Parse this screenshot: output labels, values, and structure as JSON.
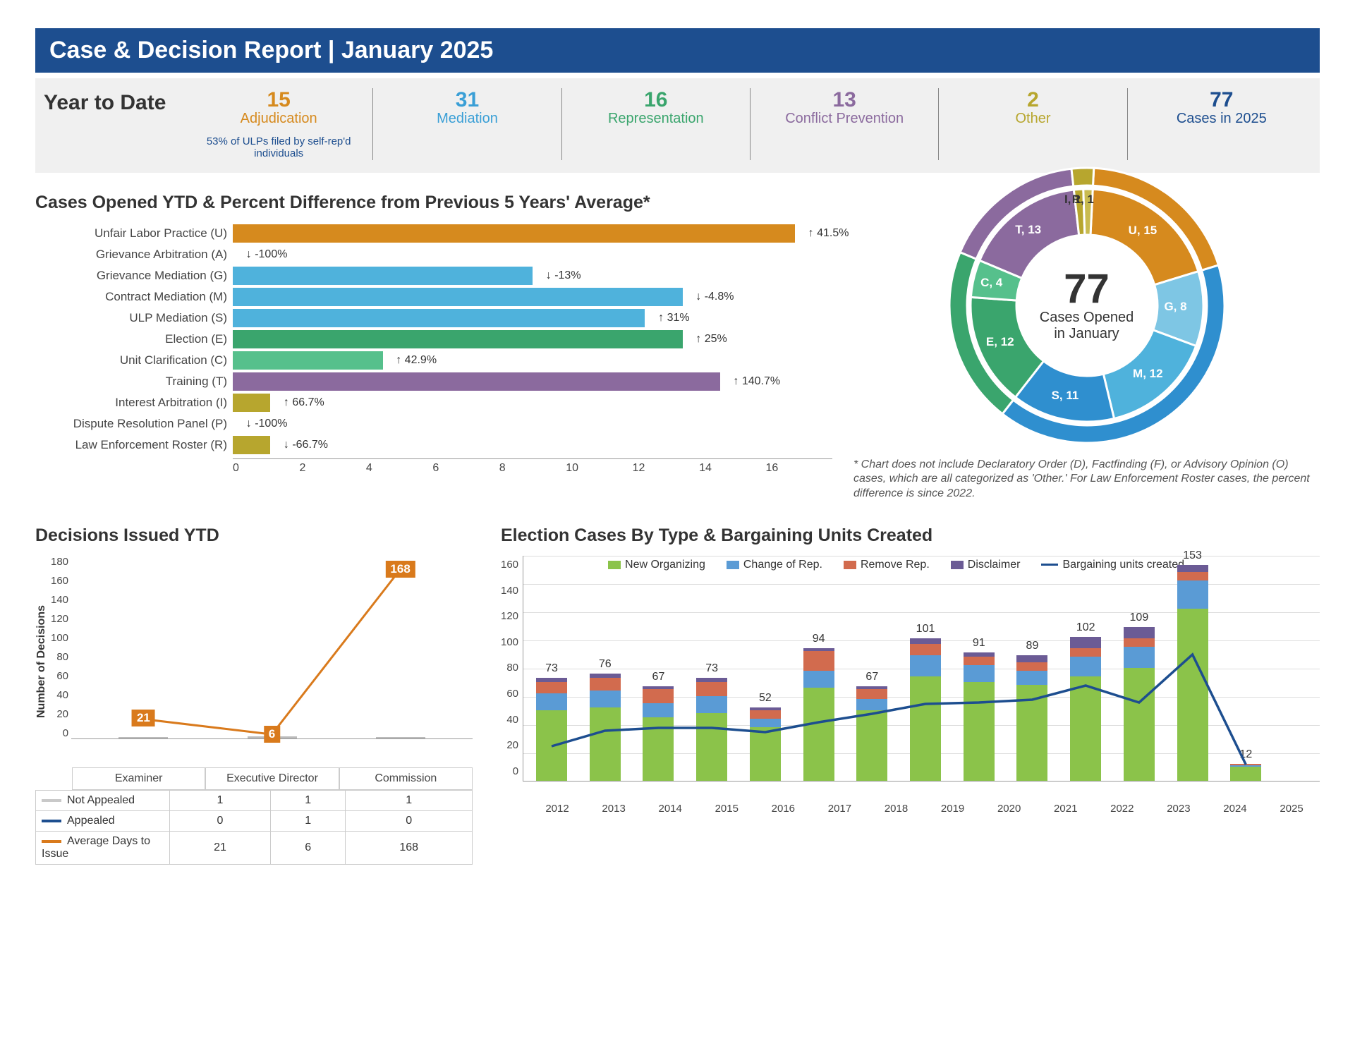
{
  "header": {
    "title": "Case & Decision Report | January 2025"
  },
  "ytd": {
    "label": "Year to Date",
    "items": [
      {
        "value": "15",
        "name": "Adjudication",
        "color": "#d68a1e",
        "sub": "53% of ULPs filed by self-rep'd individuals"
      },
      {
        "value": "31",
        "name": "Mediation",
        "color": "#3a9fd6",
        "sub": ""
      },
      {
        "value": "16",
        "name": "Representation",
        "color": "#3aa56d",
        "sub": ""
      },
      {
        "value": "13",
        "name": "Conflict Prevention",
        "color": "#8b6a9e",
        "sub": ""
      },
      {
        "value": "2",
        "name": "Other",
        "color": "#b7a62e",
        "sub": ""
      },
      {
        "value": "77",
        "name": "Cases in 2025",
        "color": "#1d4e8f",
        "sub": ""
      }
    ]
  },
  "hbar": {
    "title": "Cases Opened YTD & Percent Difference from Previous 5 Years' Average*",
    "xmax": 16,
    "xticks": [
      0,
      2,
      4,
      6,
      8,
      10,
      12,
      14,
      16
    ],
    "rows": [
      {
        "label": "Unfair Labor Practice (U)",
        "value": 15,
        "color": "#d68a1e",
        "ann": "↑ 41.5%"
      },
      {
        "label": "Grievance Arbitration (A)",
        "value": 0,
        "color": "#d68a1e",
        "ann": "↓ -100%"
      },
      {
        "label": "Grievance Mediation (G)",
        "value": 8,
        "color": "#4fb2dc",
        "ann": "↓ -13%"
      },
      {
        "label": "Contract Mediation (M)",
        "value": 12,
        "color": "#4fb2dc",
        "ann": "↓ -4.8%"
      },
      {
        "label": "ULP Mediation (S)",
        "value": 11,
        "color": "#4fb2dc",
        "ann": "↑ 31%"
      },
      {
        "label": "Election (E)",
        "value": 12,
        "color": "#3aa56d",
        "ann": "↑ 25%"
      },
      {
        "label": "Unit Clarification (C)",
        "value": 4,
        "color": "#56c08c",
        "ann": "↑ 42.9%"
      },
      {
        "label": "Training (T)",
        "value": 13,
        "color": "#8b6a9e",
        "ann": "↑ 140.7%"
      },
      {
        "label": "Interest Arbitration (I)",
        "value": 1,
        "color": "#b7a62e",
        "ann": "↑ 66.7%"
      },
      {
        "label": "Dispute Resolution Panel (P)",
        "value": 0,
        "color": "#b7a62e",
        "ann": "↓ -100%"
      },
      {
        "label": "Law Enforcement Roster (R)",
        "value": 1,
        "color": "#b7a62e",
        "ann": "↓ -66.7%"
      }
    ]
  },
  "donut": {
    "center_value": "77",
    "center_line1": "Cases Opened",
    "center_line2": "in January",
    "slices": [
      {
        "label": "U, 15",
        "value": 15,
        "color": "#d68a1e"
      },
      {
        "label": "G, 8",
        "value": 8,
        "color": "#7ec6e4"
      },
      {
        "label": "M, 12",
        "value": 12,
        "color": "#4fb2dc"
      },
      {
        "label": "S, 11",
        "value": 11,
        "color": "#2f8fcf"
      },
      {
        "label": "E, 12",
        "value": 12,
        "color": "#3aa56d"
      },
      {
        "label": "C, 4",
        "value": 4,
        "color": "#56c08c"
      },
      {
        "label": "T, 13",
        "value": 13,
        "color": "#8b6a9e"
      },
      {
        "label": "I, 1",
        "value": 1,
        "color": "#b7a62e"
      },
      {
        "label": "R, 1",
        "value": 1,
        "color": "#c9bb50"
      }
    ],
    "outer_ring": [
      {
        "value": 15,
        "color": "#d68a1e"
      },
      {
        "value": 31,
        "color": "#2f8fcf"
      },
      {
        "value": 16,
        "color": "#3aa56d"
      },
      {
        "value": 13,
        "color": "#8b6a9e"
      },
      {
        "value": 2,
        "color": "#b7a62e"
      }
    ],
    "footnote": "* Chart does not include Declaratory Order (D), Factfinding (F), or Advisory Opinion (O) cases, which are all categorized as 'Other.' For Law Enforcement Roster cases, the percent difference is since 2022."
  },
  "decisions": {
    "title": "Decisions Issued YTD",
    "yaxis_label": "Number of Decisions",
    "ymax": 180,
    "yticks": [
      180,
      160,
      140,
      120,
      100,
      80,
      60,
      40,
      20,
      0
    ],
    "categories": [
      "Examiner",
      "Executive Director",
      "Commission"
    ],
    "series": {
      "not_appealed": {
        "label": "Not Appealed",
        "color": "#c9c9c9",
        "values": [
          1,
          1,
          1
        ]
      },
      "appealed": {
        "label": "Appealed",
        "color": "#1d4e8f",
        "values": [
          0,
          1,
          0
        ]
      },
      "avg_days": {
        "label": "Average Days to Issue",
        "color": "#d97a1c",
        "values": [
          21,
          6,
          168
        ]
      }
    }
  },
  "election": {
    "title": "Election Cases By Type & Bargaining Units Created",
    "ymax": 160,
    "yticks": [
      160,
      140,
      120,
      100,
      80,
      60,
      40,
      20,
      0
    ],
    "years": [
      "2012",
      "2013",
      "2014",
      "2015",
      "2016",
      "2017",
      "2018",
      "2019",
      "2020",
      "2021",
      "2022",
      "2023",
      "2024",
      "2025"
    ],
    "totals": [
      73,
      76,
      67,
      73,
      52,
      94,
      67,
      101,
      91,
      89,
      102,
      109,
      153,
      12
    ],
    "legend": [
      {
        "label": "New Organizing",
        "color": "#8bc34a"
      },
      {
        "label": "Change of Rep.",
        "color": "#5a9bd5"
      },
      {
        "label": "Remove Rep.",
        "color": "#d26b4e"
      },
      {
        "label": "Disclaimer",
        "color": "#6b5b95"
      },
      {
        "label": "Bargaining units created",
        "color": "#1d4e8f",
        "type": "line"
      }
    ],
    "stacks": {
      "new_org": [
        50,
        52,
        45,
        48,
        38,
        66,
        50,
        74,
        70,
        68,
        74,
        80,
        122,
        10
      ],
      "change": [
        12,
        12,
        10,
        12,
        6,
        12,
        8,
        15,
        12,
        10,
        14,
        15,
        20,
        1
      ],
      "remove": [
        8,
        9,
        10,
        10,
        6,
        14,
        7,
        8,
        6,
        6,
        6,
        6,
        6,
        1
      ],
      "disclaimer": [
        3,
        3,
        2,
        3,
        2,
        2,
        2,
        4,
        3,
        5,
        8,
        8,
        5,
        0
      ]
    },
    "line_units": [
      25,
      36,
      38,
      38,
      35,
      42,
      48,
      55,
      56,
      58,
      68,
      56,
      90,
      12
    ]
  }
}
